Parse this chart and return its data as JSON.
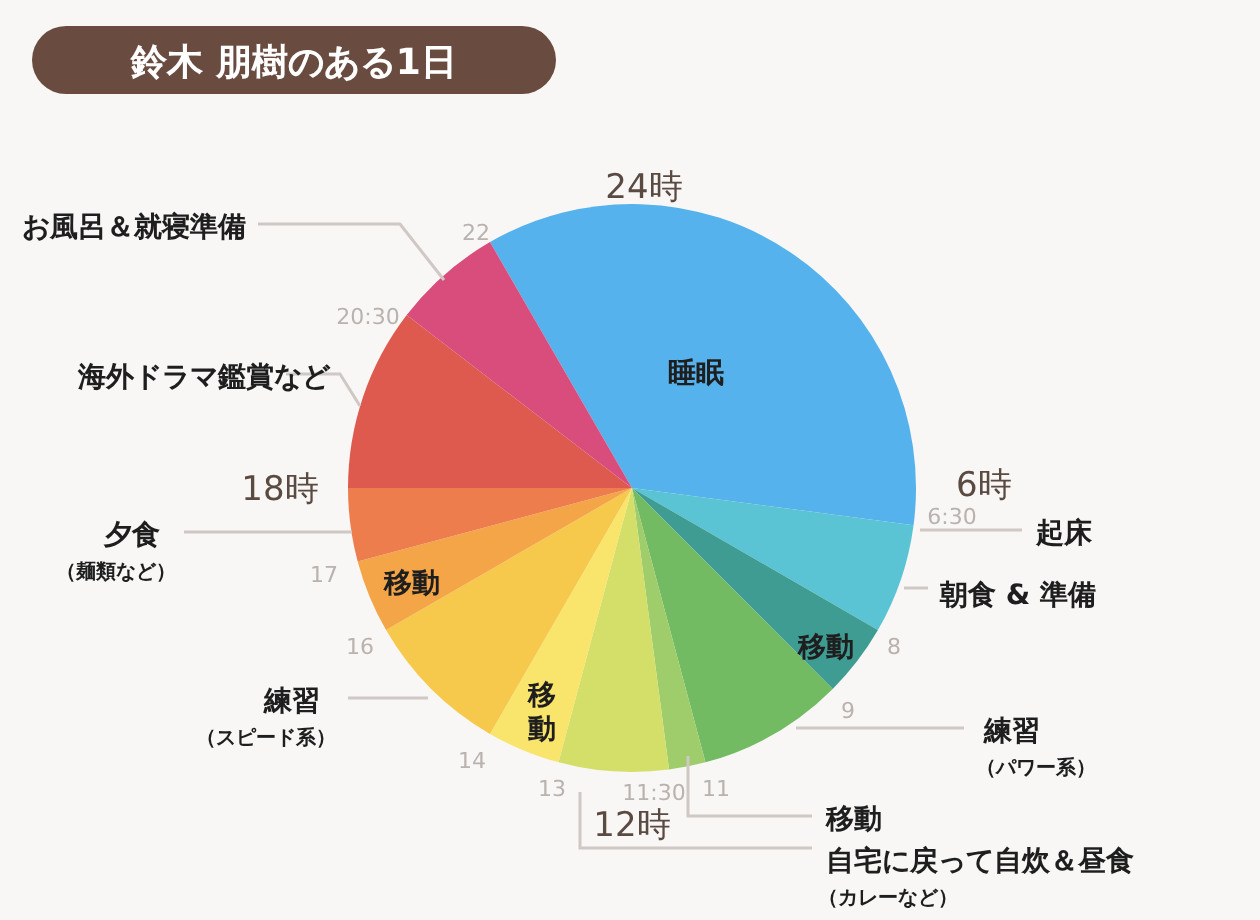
{
  "chart_data": {
    "type": "pie",
    "title": "鈴木 朋樹のある1日",
    "categories": [
      "睡眠",
      "朝食 & 準備",
      "移動",
      "練習（パワー系）",
      "移動",
      "自宅に戻って自炊＆昼食（カレーなど）",
      "移動",
      "練習（スピード系）",
      "移動",
      "夕食（麺類など）",
      "海外ドラマ鑑賞など",
      "お風呂＆就寝準備"
    ],
    "values": [
      35.42,
      6.25,
      4.17,
      8.33,
      2.08,
      6.25,
      4.17,
      8.33,
      4.17,
      4.17,
      10.41,
      6.25
    ],
    "colors": [
      "#56b2ec",
      "#5ac4d4",
      "#3f9c92",
      "#72bb62",
      "#9fcd6c",
      "#d4df6a",
      "#f9e46c",
      "#f6c84c",
      "#f3a548",
      "#ee7d4e",
      "#df5a4e",
      "#d84d7c"
    ],
    "annotations": [
      "24時",
      "6時",
      "12時",
      "18時",
      "起床",
      "22",
      "20:30",
      "6:30",
      "8",
      "9",
      "11",
      "11:30",
      "13",
      "14",
      "16",
      "17"
    ]
  }
}
